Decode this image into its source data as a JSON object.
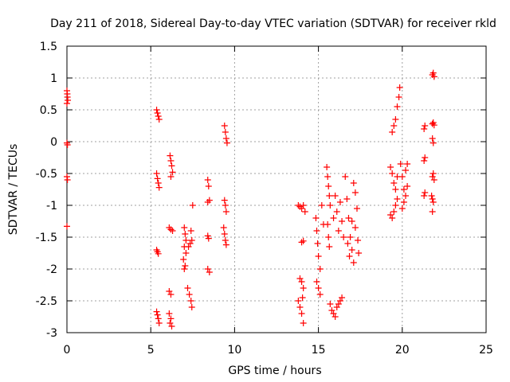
{
  "chart_data": {
    "type": "scatter",
    "title": "Day 211 of 2018, Sidereal Day-to-day VTEC variation (SDTVAR) for receiver rkld",
    "xlabel": "GPS time / hours",
    "ylabel": "SDTVAR / TECUs",
    "xlim": [
      0,
      25
    ],
    "ylim": [
      -3,
      1.5
    ],
    "xticks": [
      0,
      5,
      10,
      15,
      20,
      25
    ],
    "xtick_labels": [
      "0",
      "5",
      "10",
      "15",
      "20",
      "25"
    ],
    "yticks": [
      -3,
      -2.5,
      -2,
      -1.5,
      -1,
      -0.5,
      0,
      0.5,
      1,
      1.5
    ],
    "ytick_labels": [
      "-3",
      "-2.5",
      "-2",
      "-1.5",
      "-1",
      "-0.5",
      "0",
      "0.5",
      "1",
      "1.5"
    ],
    "grid": true,
    "marker": "+",
    "color": "#ff0000",
    "series": [
      {
        "name": "SDTVAR",
        "points": [
          [
            0.0,
            0.8
          ],
          [
            0.02,
            0.75
          ],
          [
            0.03,
            0.7
          ],
          [
            0.05,
            0.65
          ],
          [
            0.0,
            0.6
          ],
          [
            0.0,
            -0.02
          ],
          [
            0.03,
            -0.05
          ],
          [
            0.0,
            -0.55
          ],
          [
            0.03,
            -0.6
          ],
          [
            0.0,
            -1.33
          ],
          [
            5.35,
            0.5
          ],
          [
            5.4,
            0.45
          ],
          [
            5.45,
            0.4
          ],
          [
            5.5,
            0.35
          ],
          [
            5.35,
            -0.5
          ],
          [
            5.4,
            -0.58
          ],
          [
            5.45,
            -0.65
          ],
          [
            5.5,
            -0.72
          ],
          [
            5.35,
            -1.7
          ],
          [
            5.4,
            -1.73
          ],
          [
            5.45,
            -1.76
          ],
          [
            5.35,
            -2.67
          ],
          [
            5.4,
            -2.72
          ],
          [
            5.45,
            -2.78
          ],
          [
            5.5,
            -2.85
          ],
          [
            6.15,
            -0.22
          ],
          [
            6.2,
            -0.3
          ],
          [
            6.25,
            -0.38
          ],
          [
            6.3,
            -0.48
          ],
          [
            6.2,
            -0.55
          ],
          [
            6.1,
            -1.35
          ],
          [
            6.2,
            -1.38
          ],
          [
            6.3,
            -1.4
          ],
          [
            6.1,
            -2.35
          ],
          [
            6.2,
            -2.4
          ],
          [
            6.1,
            -2.7
          ],
          [
            6.2,
            -2.78
          ],
          [
            6.15,
            -2.85
          ],
          [
            6.25,
            -2.9
          ],
          [
            7.0,
            -1.35
          ],
          [
            7.05,
            -1.45
          ],
          [
            7.1,
            -1.55
          ],
          [
            7.0,
            -1.65
          ],
          [
            7.1,
            -1.75
          ],
          [
            6.95,
            -1.85
          ],
          [
            7.05,
            -1.95
          ],
          [
            7.0,
            -2.0
          ],
          [
            7.2,
            -2.3
          ],
          [
            7.3,
            -2.4
          ],
          [
            7.4,
            -2.5
          ],
          [
            7.45,
            -2.6
          ],
          [
            7.25,
            -1.65
          ],
          [
            7.35,
            -1.6
          ],
          [
            7.45,
            -1.55
          ],
          [
            7.5,
            -1.0
          ],
          [
            7.4,
            -1.4
          ],
          [
            8.4,
            -0.6
          ],
          [
            8.45,
            -0.7
          ],
          [
            8.5,
            -0.92
          ],
          [
            8.4,
            -0.95
          ],
          [
            8.4,
            -1.48
          ],
          [
            8.45,
            -1.52
          ],
          [
            8.4,
            -2.0
          ],
          [
            8.5,
            -2.05
          ],
          [
            9.4,
            0.25
          ],
          [
            9.45,
            0.15
          ],
          [
            9.5,
            0.05
          ],
          [
            9.55,
            -0.02
          ],
          [
            9.4,
            -0.92
          ],
          [
            9.45,
            -1.0
          ],
          [
            9.5,
            -1.1
          ],
          [
            9.35,
            -1.35
          ],
          [
            9.4,
            -1.45
          ],
          [
            9.45,
            -1.55
          ],
          [
            9.5,
            -1.62
          ],
          [
            13.8,
            -1.0
          ],
          [
            13.9,
            -1.02
          ],
          [
            14.0,
            -1.05
          ],
          [
            14.1,
            -1.0
          ],
          [
            14.2,
            -1.1
          ],
          [
            14.0,
            -1.58
          ],
          [
            14.1,
            -1.56
          ],
          [
            13.9,
            -2.15
          ],
          [
            14.0,
            -2.2
          ],
          [
            14.1,
            -2.3
          ],
          [
            14.05,
            -2.45
          ],
          [
            13.8,
            -2.5
          ],
          [
            13.9,
            -2.6
          ],
          [
            14.0,
            -2.7
          ],
          [
            14.1,
            -2.85
          ],
          [
            14.85,
            -1.2
          ],
          [
            14.9,
            -1.4
          ],
          [
            14.95,
            -1.6
          ],
          [
            15.0,
            -1.8
          ],
          [
            15.1,
            -2.0
          ],
          [
            14.9,
            -2.2
          ],
          [
            15.0,
            -2.3
          ],
          [
            15.1,
            -2.4
          ],
          [
            15.2,
            -1.0
          ],
          [
            15.3,
            -1.3
          ],
          [
            15.5,
            -0.4
          ],
          [
            15.55,
            -0.55
          ],
          [
            15.6,
            -0.7
          ],
          [
            15.65,
            -0.85
          ],
          [
            15.7,
            -1.0
          ],
          [
            15.55,
            -1.3
          ],
          [
            15.6,
            -1.5
          ],
          [
            15.65,
            -1.65
          ],
          [
            15.7,
            -2.55
          ],
          [
            15.8,
            -2.65
          ],
          [
            15.9,
            -2.7
          ],
          [
            16.0,
            -2.75
          ],
          [
            16.1,
            -2.6
          ],
          [
            16.2,
            -2.55
          ],
          [
            16.3,
            -2.5
          ],
          [
            16.4,
            -2.45
          ],
          [
            15.9,
            -1.2
          ],
          [
            16.0,
            -0.85
          ],
          [
            16.1,
            -1.1
          ],
          [
            16.2,
            -1.4
          ],
          [
            16.3,
            -0.95
          ],
          [
            16.4,
            -1.25
          ],
          [
            16.5,
            -1.5
          ],
          [
            16.6,
            -0.55
          ],
          [
            16.7,
            -0.9
          ],
          [
            16.8,
            -1.2
          ],
          [
            16.9,
            -1.5
          ],
          [
            17.0,
            -1.7
          ],
          [
            17.1,
            -1.9
          ],
          [
            17.2,
            -1.35
          ],
          [
            17.3,
            -1.05
          ],
          [
            17.35,
            -1.55
          ],
          [
            17.4,
            -1.75
          ],
          [
            17.1,
            -0.65
          ],
          [
            17.2,
            -0.8
          ],
          [
            16.75,
            -1.6
          ],
          [
            16.85,
            -1.8
          ],
          [
            17.0,
            -1.25
          ],
          [
            19.3,
            -0.4
          ],
          [
            19.4,
            -0.5
          ],
          [
            19.5,
            -0.65
          ],
          [
            19.6,
            -0.75
          ],
          [
            19.7,
            -0.55
          ],
          [
            19.3,
            -1.15
          ],
          [
            19.4,
            -1.2
          ],
          [
            19.5,
            -1.1
          ],
          [
            19.6,
            -1.0
          ],
          [
            19.7,
            -0.9
          ],
          [
            19.4,
            0.15
          ],
          [
            19.5,
            0.25
          ],
          [
            19.6,
            0.35
          ],
          [
            19.7,
            0.55
          ],
          [
            19.8,
            0.7
          ],
          [
            19.85,
            0.85
          ],
          [
            19.9,
            -0.35
          ],
          [
            20.0,
            -0.55
          ],
          [
            20.1,
            -0.75
          ],
          [
            20.2,
            -0.85
          ],
          [
            20.3,
            -0.7
          ],
          [
            20.0,
            -1.05
          ],
          [
            20.1,
            -0.95
          ],
          [
            20.2,
            -0.45
          ],
          [
            20.3,
            -0.35
          ],
          [
            21.3,
            0.2
          ],
          [
            21.35,
            0.25
          ],
          [
            21.3,
            -0.3
          ],
          [
            21.35,
            -0.25
          ],
          [
            21.3,
            -0.85
          ],
          [
            21.35,
            -0.8
          ],
          [
            21.8,
            1.05
          ],
          [
            21.85,
            1.08
          ],
          [
            21.9,
            1.02
          ],
          [
            21.8,
            0.28
          ],
          [
            21.85,
            0.3
          ],
          [
            21.9,
            0.26
          ],
          [
            21.8,
            0.05
          ],
          [
            21.85,
            -0.02
          ],
          [
            21.8,
            -0.55
          ],
          [
            21.85,
            -0.5
          ],
          [
            21.9,
            -0.6
          ],
          [
            21.75,
            -0.85
          ],
          [
            21.8,
            -0.9
          ],
          [
            21.85,
            -0.95
          ],
          [
            21.8,
            -1.1
          ]
        ]
      }
    ]
  }
}
